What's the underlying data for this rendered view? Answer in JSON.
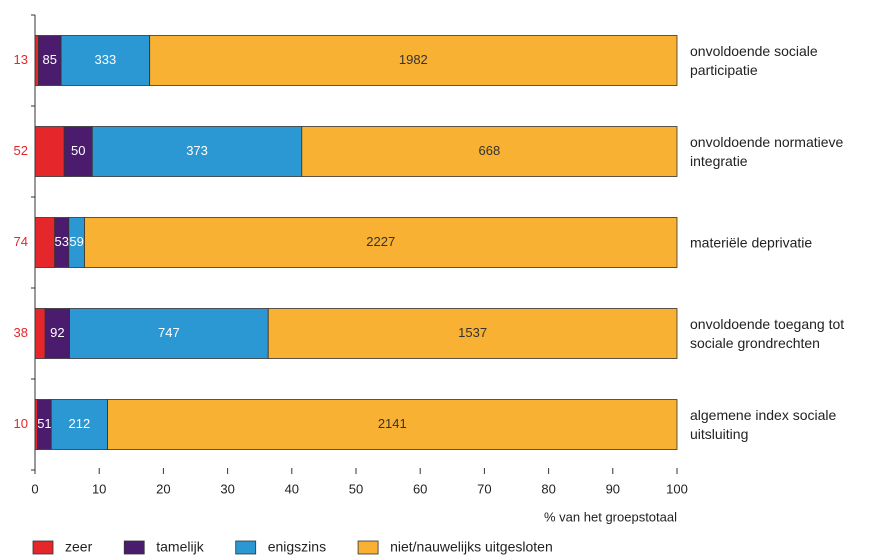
{
  "chart_data": {
    "type": "bar",
    "orientation": "horizontal",
    "stacking": "percent",
    "categories": [
      "onvoldoende sociale participatie",
      "onvoldoende normatieve integratie",
      "materiële deprivatie",
      "onvoldoende toegang tot sociale grondrechten",
      "algemene index sociale uitsluiting"
    ],
    "series": [
      {
        "name": "zeer",
        "color": "#e5262b",
        "values": [
          13,
          52,
          74,
          38,
          10
        ]
      },
      {
        "name": "tamelijk",
        "color": "#4b1c6e",
        "values": [
          85,
          50,
          53,
          92,
          51
        ]
      },
      {
        "name": "enigszins",
        "color": "#2b97d3",
        "values": [
          333,
          373,
          59,
          747,
          212
        ]
      },
      {
        "name": "niet/nauwelijks uitgesloten",
        "color": "#f8b133",
        "values": [
          1982,
          668,
          2227,
          1537,
          2141
        ]
      }
    ],
    "xlim": [
      0,
      100
    ],
    "xticks": [
      0,
      10,
      20,
      30,
      40,
      50,
      60,
      70,
      80,
      90,
      100
    ],
    "x_label": "% van het groepstotaal"
  }
}
